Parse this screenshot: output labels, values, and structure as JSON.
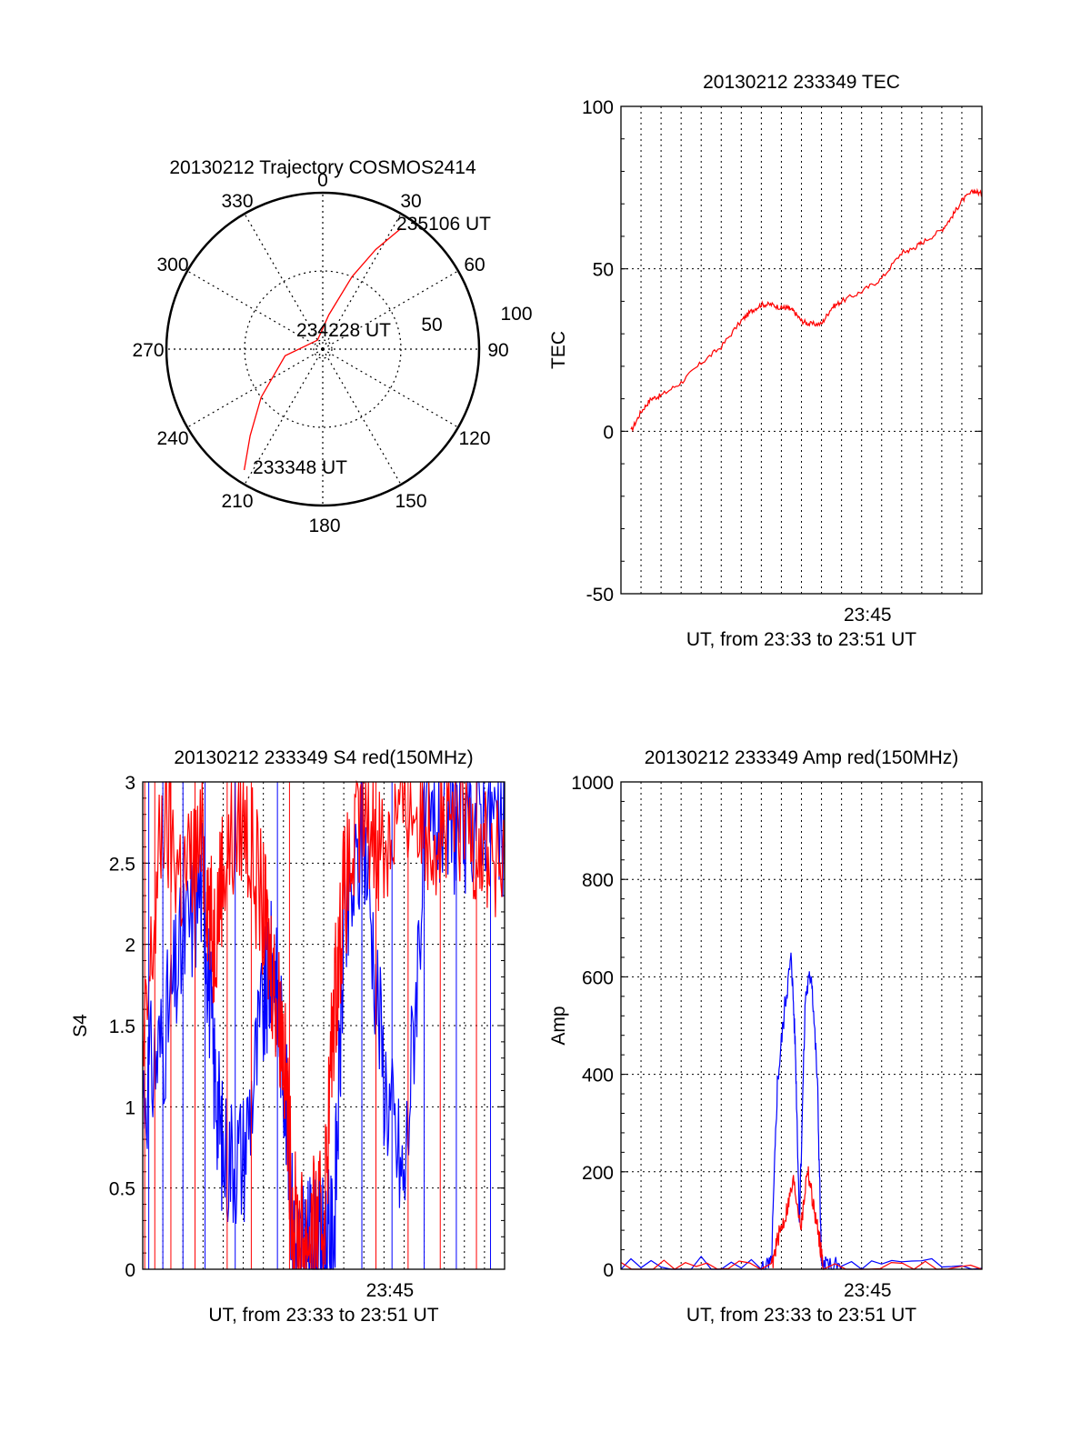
{
  "chart_data": [
    {
      "type": "polar",
      "title": "20130212 Trajectory COSMOS2414",
      "angle_labels": [
        "0",
        "30",
        "60",
        "90",
        "120",
        "150",
        "180",
        "210",
        "240",
        "270",
        "300",
        "330"
      ],
      "radius_labels": [
        "50",
        "100"
      ],
      "point_labels": [
        {
          "text": "233348 UT",
          "azimuth": 213,
          "elevation": 7
        },
        {
          "text": "234228 UT",
          "azimuth": 0,
          "elevation": 88
        },
        {
          "text": "235106 UT",
          "azimuth": 33,
          "elevation": 7
        }
      ],
      "series": [
        {
          "color": "#ff0000",
          "points": [
            [
              213,
              7
            ],
            [
              220,
              25
            ],
            [
              232,
              45
            ],
            [
              260,
              68
            ],
            [
              330,
              84
            ],
            [
              10,
              70
            ],
            [
              22,
              45
            ],
            [
              28,
              25
            ],
            [
              33,
              7
            ]
          ]
        }
      ]
    },
    {
      "type": "line",
      "title": "20130212 233349 TEC",
      "xlabel": "UT, from 23:33 to 23:51 UT",
      "ylabel": "TEC",
      "xlim": [
        0,
        18
      ],
      "ylim": [
        -50,
        100
      ],
      "yticks": [
        "-50",
        "0",
        "50",
        "100"
      ],
      "xtick_label": "23:45",
      "grid": true,
      "series": [
        {
          "color": "#ff0000",
          "x": [
            0.5,
            1,
            1.5,
            2,
            3,
            4,
            5,
            6,
            6.5,
            7,
            7.5,
            8,
            8.3,
            8.6,
            9,
            9.4,
            10,
            10.5,
            11,
            12,
            13,
            14,
            14.5,
            15,
            16,
            16.5,
            17,
            17.6,
            18
          ],
          "y": [
            0,
            6,
            10,
            11,
            15,
            21,
            26,
            34,
            37,
            39,
            39,
            38,
            38,
            37,
            34,
            33,
            33,
            38,
            40,
            43,
            47,
            55,
            56,
            58,
            62,
            66,
            71,
            74,
            73
          ]
        }
      ]
    },
    {
      "type": "line",
      "title": "20130212 233349 S4 red(150MHz)",
      "xlabel": "UT, from 23:33 to 23:51 UT",
      "ylabel": "S4",
      "xlim": [
        0,
        18
      ],
      "ylim": [
        0,
        3
      ],
      "yticks": [
        "0",
        "0.5",
        "1",
        "1.5",
        "2",
        "2.5",
        "3"
      ],
      "xtick_label": "23:45",
      "grid": true,
      "series": [
        {
          "color": "#0000ff",
          "x": [
            0,
            1,
            2,
            3,
            3.5,
            4,
            5,
            6,
            6.5,
            7,
            7.5,
            8,
            8.5,
            9,
            9.5,
            10,
            11,
            12,
            13,
            14,
            15,
            16,
            17,
            18
          ],
          "y": [
            1.1,
            1.4,
            2.0,
            2.4,
            1.3,
            0.7,
            0.7,
            1.6,
            1.9,
            1.3,
            0.2,
            0.08,
            0.2,
            0.15,
            0.2,
            2.0,
            2.7,
            1.2,
            0.5,
            2.6,
            2.8,
            2.7,
            2.9,
            2.6
          ]
        },
        {
          "color": "#ff0000",
          "x": [
            0,
            1,
            2,
            3,
            3.5,
            4,
            5,
            6,
            6.5,
            7,
            7.5,
            8,
            8.5,
            9,
            9.5,
            10,
            11,
            12,
            13,
            14,
            15,
            16,
            17,
            18
          ],
          "y": [
            1.2,
            2.8,
            2.4,
            2.6,
            2.0,
            2.5,
            2.8,
            2.2,
            1.8,
            1.4,
            0.3,
            0.18,
            0.25,
            0.3,
            1.6,
            2.3,
            2.8,
            2.6,
            2.9,
            2.8,
            2.7,
            2.8,
            2.6,
            2.4
          ]
        }
      ]
    },
    {
      "type": "line",
      "title": "20130212 233349 Amp red(150MHz)",
      "xlabel": "UT, from 23:33 to 23:51 UT",
      "ylabel": "Amp",
      "xlim": [
        0,
        18
      ],
      "ylim": [
        0,
        1000
      ],
      "yticks": [
        "0",
        "200",
        "400",
        "600",
        "800",
        "1000"
      ],
      "xtick_label": "23:45",
      "grid": true,
      "series": [
        {
          "color": "#0000ff",
          "x": [
            0,
            7,
            7.5,
            7.8,
            8.2,
            8.5,
            8.7,
            8.9,
            9.2,
            9.5,
            9.8,
            10,
            10.2,
            11,
            18
          ],
          "y": [
            2,
            2,
            5,
            380,
            550,
            640,
            450,
            100,
            560,
            610,
            380,
            5,
            2,
            2,
            2
          ]
        },
        {
          "color": "#ff0000",
          "x": [
            0,
            7.5,
            7.8,
            8.2,
            8.6,
            9.0,
            9.3,
            9.6,
            9.9,
            10.1,
            18
          ],
          "y": [
            0,
            0,
            60,
            110,
            180,
            90,
            210,
            130,
            60,
            0,
            0
          ]
        }
      ]
    }
  ]
}
